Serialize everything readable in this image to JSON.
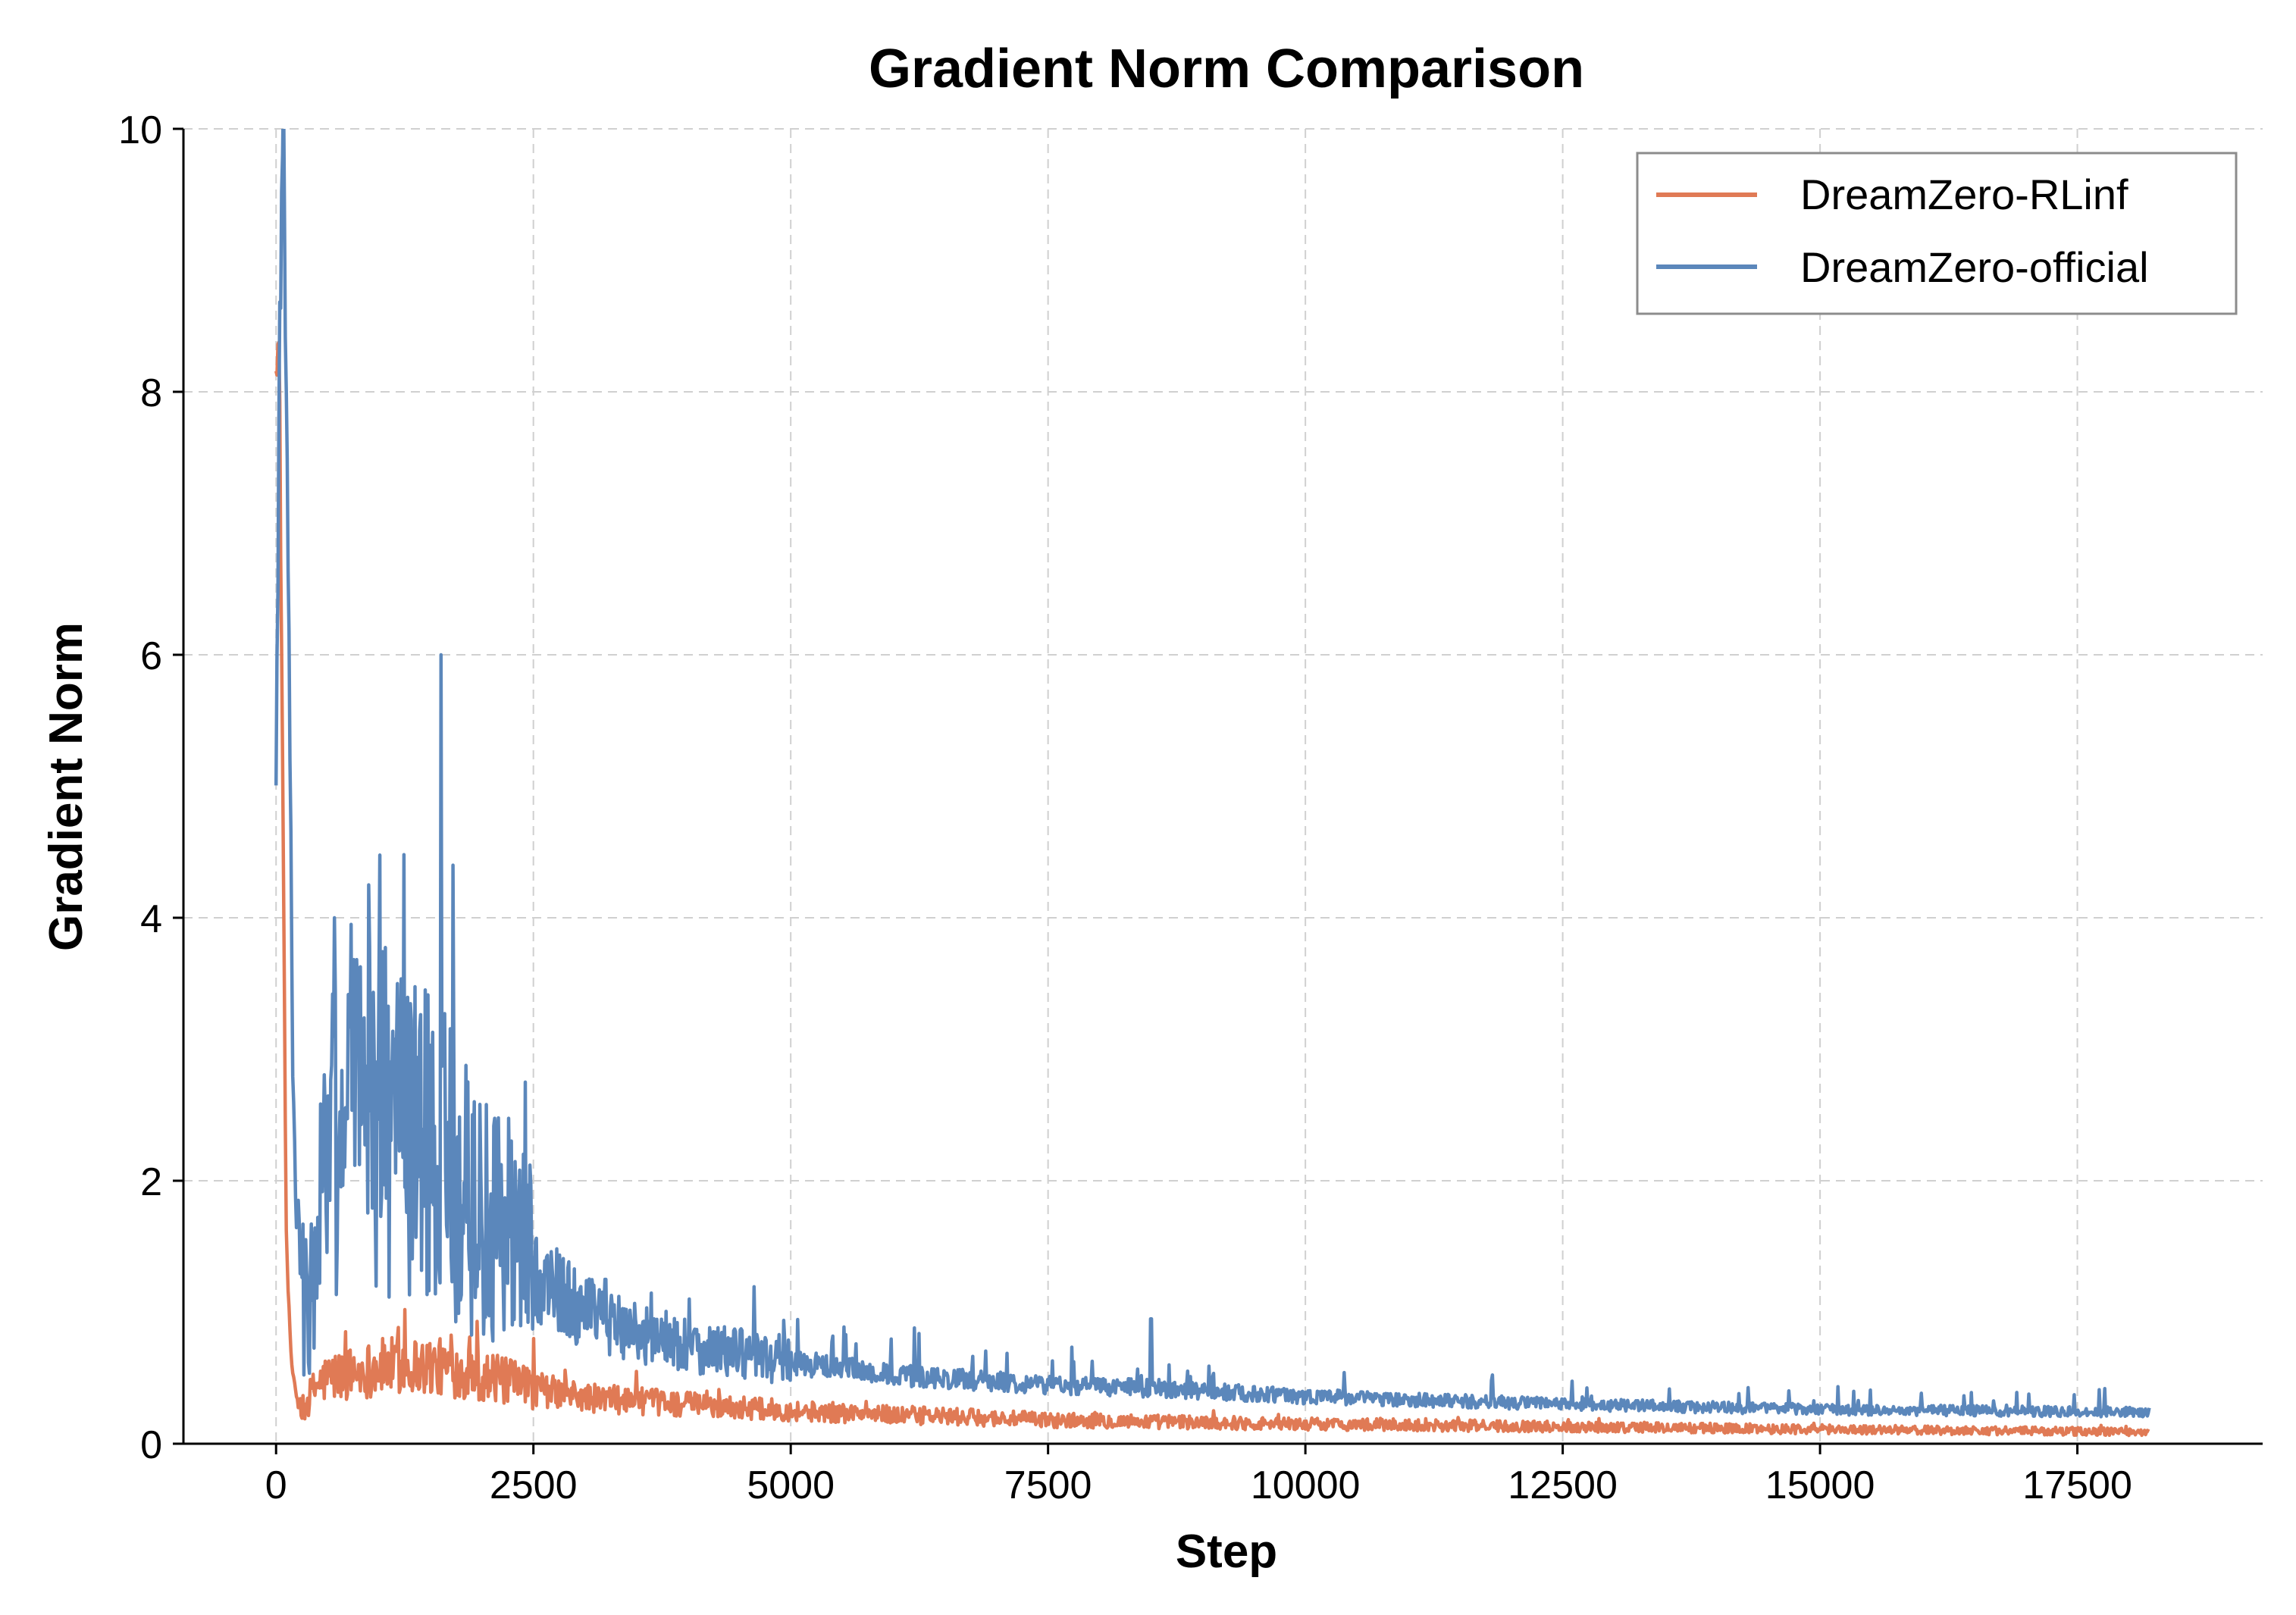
{
  "chart_data": {
    "type": "line",
    "title": "Gradient Norm Comparison",
    "xlabel": "Step",
    "ylabel": "Gradient Norm",
    "xlim": [
      -900,
      19300
    ],
    "ylim": [
      0,
      10
    ],
    "xticks": [
      0,
      2500,
      5000,
      7500,
      10000,
      12500,
      15000,
      17500
    ],
    "xtick_labels": [
      "0",
      "2500",
      "5000",
      "7500",
      "10000",
      "12500",
      "15000",
      "17500"
    ],
    "yticks": [
      0,
      2,
      4,
      6,
      8,
      10
    ],
    "ytick_labels": [
      "0",
      "2",
      "4",
      "6",
      "8",
      "10"
    ],
    "grid": true,
    "legend_position": "top-right",
    "colors": {
      "rlinf": "#e07a55",
      "official": "#5b87bb",
      "grid": "#d0d0d0"
    },
    "series": [
      {
        "name": "DreamZero-RLinf",
        "key": "rlinf",
        "color": "#e07a55",
        "x_end": 18200,
        "anchors": [
          [
            0,
            8.4
          ],
          [
            30,
            8.3
          ],
          [
            60,
            5.5
          ],
          [
            100,
            1.5
          ],
          [
            150,
            0.6
          ],
          [
            200,
            0.35
          ],
          [
            250,
            0.28
          ],
          [
            300,
            0.32
          ],
          [
            400,
            0.45
          ],
          [
            500,
            0.5
          ],
          [
            800,
            0.55
          ],
          [
            1000,
            0.58
          ],
          [
            1300,
            0.6
          ],
          [
            1600,
            0.58
          ],
          [
            2000,
            0.52
          ],
          [
            2500,
            0.42
          ],
          [
            3000,
            0.35
          ],
          [
            4000,
            0.3
          ],
          [
            5000,
            0.25
          ],
          [
            6000,
            0.22
          ],
          [
            7500,
            0.18
          ],
          [
            10000,
            0.15
          ],
          [
            12500,
            0.13
          ],
          [
            15000,
            0.11
          ],
          [
            18200,
            0.09
          ]
        ],
        "spikes": [
          [
            1250,
            1.02
          ],
          [
            1950,
            0.93
          ],
          [
            2500,
            0.8
          ],
          [
            3500,
            0.55
          ]
        ]
      },
      {
        "name": "DreamZero-official",
        "key": "official",
        "color": "#5b87bb",
        "x_end": 18200,
        "anchors": [
          [
            0,
            5.0
          ],
          [
            30,
            8.0
          ],
          [
            70,
            10.2
          ],
          [
            110,
            7.5
          ],
          [
            160,
            3.0
          ],
          [
            200,
            1.5
          ],
          [
            260,
            1.1
          ],
          [
            330,
            1.0
          ],
          [
            400,
            1.6
          ],
          [
            500,
            2.2
          ],
          [
            800,
            2.6
          ],
          [
            1000,
            2.5
          ],
          [
            1300,
            2.3
          ],
          [
            1600,
            2.2
          ],
          [
            2000,
            1.7
          ],
          [
            2400,
            1.5
          ],
          [
            2500,
            1.3
          ],
          [
            3000,
            1.0
          ],
          [
            3500,
            0.85
          ],
          [
            4000,
            0.75
          ],
          [
            5000,
            0.62
          ],
          [
            6000,
            0.52
          ],
          [
            7500,
            0.45
          ],
          [
            8500,
            0.42
          ],
          [
            10000,
            0.36
          ],
          [
            12500,
            0.3
          ],
          [
            15000,
            0.26
          ],
          [
            18200,
            0.24
          ]
        ],
        "spikes": [
          [
            570,
            4.0
          ],
          [
            730,
            3.95
          ],
          [
            900,
            4.25
          ],
          [
            1240,
            4.48
          ],
          [
            1600,
            6.0
          ],
          [
            1720,
            4.4
          ],
          [
            2420,
            2.75
          ],
          [
            3200,
            1.25
          ],
          [
            8500,
            0.95
          ],
          [
            6200,
            0.88
          ]
        ]
      }
    ]
  }
}
